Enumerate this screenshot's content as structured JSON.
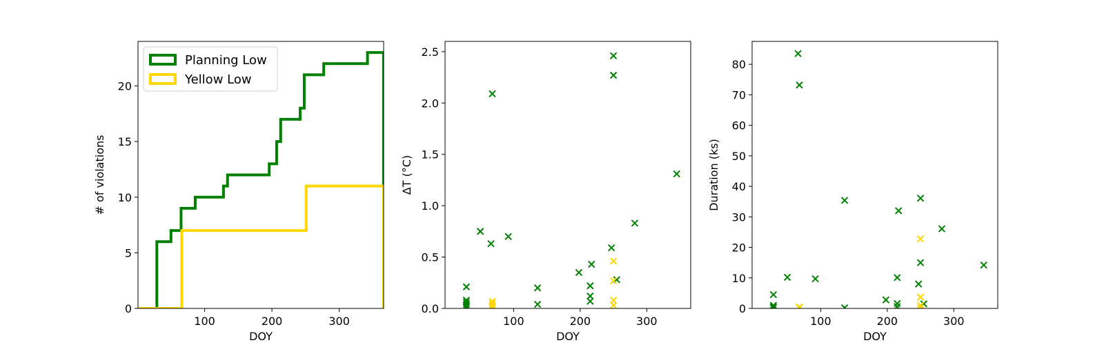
{
  "chart_data": [
    {
      "type": "line",
      "subtype": "step",
      "xlabel": "DOY",
      "ylabel": "# of violations",
      "xlim": [
        1,
        366
      ],
      "ylim": [
        0,
        24
      ],
      "xticks": [
        100,
        200,
        300
      ],
      "yticks": [
        0,
        5,
        10,
        15,
        20
      ],
      "grid": false,
      "legend_position": "top-left",
      "series": [
        {
          "name": "Planning Low",
          "color": "#008000",
          "x": [
            1,
            29,
            29,
            50,
            50,
            65,
            65,
            86,
            86,
            128,
            128,
            134,
            134,
            196,
            196,
            207,
            207,
            213,
            213,
            242,
            242,
            248,
            248,
            277,
            277,
            342,
            342,
            366,
            366
          ],
          "y": [
            0,
            0,
            6,
            6,
            7,
            7,
            9,
            9,
            10,
            10,
            11,
            11,
            12,
            12,
            13,
            13,
            15,
            15,
            17,
            17,
            18,
            18,
            21,
            21,
            22,
            22,
            23,
            23,
            0
          ]
        },
        {
          "name": "Yellow Low",
          "color": "#FFD700",
          "x": [
            1,
            66,
            66,
            251,
            251,
            366,
            366
          ],
          "y": [
            0,
            0,
            7,
            7,
            11,
            11,
            0
          ]
        }
      ]
    },
    {
      "type": "scatter",
      "marker": "x",
      "xlabel": "DOY",
      "ylabel": "ΔT ($^\\circ$C)",
      "ylabel_display": "ΔT (°C)",
      "xlim": [
        -3,
        366
      ],
      "ylim": [
        0,
        2.6
      ],
      "xticks": [
        100,
        200,
        300
      ],
      "yticks": [
        0.0,
        0.5,
        1.0,
        1.5,
        2.0,
        2.5
      ],
      "ytick_labels": [
        "0.0",
        "0.5",
        "1.0",
        "1.5",
        "2.0",
        "2.5"
      ],
      "grid": false,
      "series": [
        {
          "color": "#008000",
          "points": [
            [
              29,
              0.21
            ],
            [
              29,
              0.08
            ],
            [
              29,
              0.06
            ],
            [
              29,
              0.04
            ],
            [
              29,
              0.02
            ],
            [
              29,
              0.01
            ],
            [
              50,
              0.75
            ],
            [
              66,
              0.63
            ],
            [
              68,
              2.09
            ],
            [
              92,
              0.7
            ],
            [
              136,
              0.2
            ],
            [
              136,
              0.04
            ],
            [
              198,
              0.35
            ],
            [
              215,
              0.22
            ],
            [
              215,
              0.12
            ],
            [
              215,
              0.07
            ],
            [
              217,
              0.43
            ],
            [
              247,
              0.59
            ],
            [
              250,
              2.46
            ],
            [
              250,
              2.27
            ],
            [
              255,
              0.28
            ],
            [
              282,
              0.83
            ],
            [
              345,
              1.31
            ]
          ]
        },
        {
          "color": "#FFD700",
          "points": [
            [
              68,
              0.07
            ],
            [
              68,
              0.05
            ],
            [
              68,
              0.03
            ],
            [
              68,
              0.01
            ],
            [
              250,
              0.46
            ],
            [
              250,
              0.27
            ],
            [
              250,
              0.08
            ],
            [
              250,
              0.03
            ]
          ]
        }
      ]
    },
    {
      "type": "scatter",
      "marker": "x",
      "xlabel": "DOY",
      "ylabel": "Duration (ks)",
      "xlim": [
        -3,
        366
      ],
      "ylim": [
        0,
        87.5
      ],
      "xticks": [
        100,
        200,
        300
      ],
      "yticks": [
        0,
        10,
        20,
        30,
        40,
        50,
        60,
        70,
        80
      ],
      "grid": false,
      "series": [
        {
          "color": "#008000",
          "points": [
            [
              29,
              4.5
            ],
            [
              29,
              1.0
            ],
            [
              29,
              0.5
            ],
            [
              29,
              0.2
            ],
            [
              50,
              10.2
            ],
            [
              66,
              83.5
            ],
            [
              68,
              73.2
            ],
            [
              92,
              9.7
            ],
            [
              136,
              35.4
            ],
            [
              136,
              0.2
            ],
            [
              198,
              2.8
            ],
            [
              215,
              10.1
            ],
            [
              215,
              1.6
            ],
            [
              215,
              0.6
            ],
            [
              217,
              32.0
            ],
            [
              247,
              8.0
            ],
            [
              250,
              36.1
            ],
            [
              250,
              15.0
            ],
            [
              255,
              1.5
            ],
            [
              282,
              26.1
            ],
            [
              345,
              14.2
            ]
          ]
        },
        {
          "color": "#FFD700",
          "points": [
            [
              68,
              0.5
            ],
            [
              68,
              0.2
            ],
            [
              250,
              22.8
            ],
            [
              250,
              3.7
            ],
            [
              250,
              1.0
            ],
            [
              250,
              0.2
            ]
          ]
        }
      ]
    }
  ]
}
